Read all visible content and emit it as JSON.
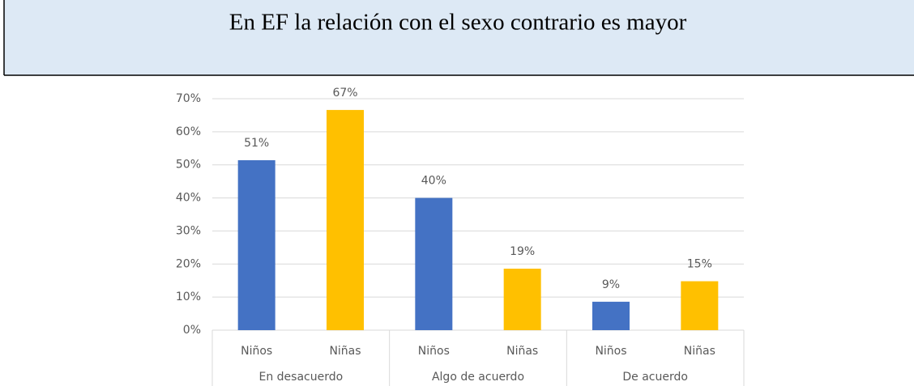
{
  "chart_data": {
    "type": "bar",
    "title": "En EF la relación con el sexo contrario es mayor",
    "categories": [
      "Niños",
      "Niñas",
      "Niños",
      "Niñas",
      "Niños",
      "Niñas"
    ],
    "groups": [
      "En desacuerdo",
      "Algo de acuerdo",
      "De acuerdo"
    ],
    "values": [
      51.4,
      66.6,
      40,
      18.6,
      8.6,
      14.8
    ],
    "value_labels": [
      "51%",
      "67%",
      "40%",
      "19%",
      "9%",
      "15%"
    ],
    "colors": [
      "#4472c4",
      "#ffc000",
      "#4472c4",
      "#ffc000",
      "#4472c4",
      "#ffc000"
    ],
    "ylim": [
      0,
      70
    ],
    "yticks": [
      {
        "value": 0,
        "label": "0%"
      },
      {
        "value": 10,
        "label": "10%"
      },
      {
        "value": 20,
        "label": "20%"
      },
      {
        "value": 30,
        "label": "30%"
      },
      {
        "value": 40,
        "label": "40%"
      },
      {
        "value": 50,
        "label": "50%"
      },
      {
        "value": 60,
        "label": "60%"
      },
      {
        "value": 70,
        "label": "70%"
      }
    ],
    "grid": true
  }
}
